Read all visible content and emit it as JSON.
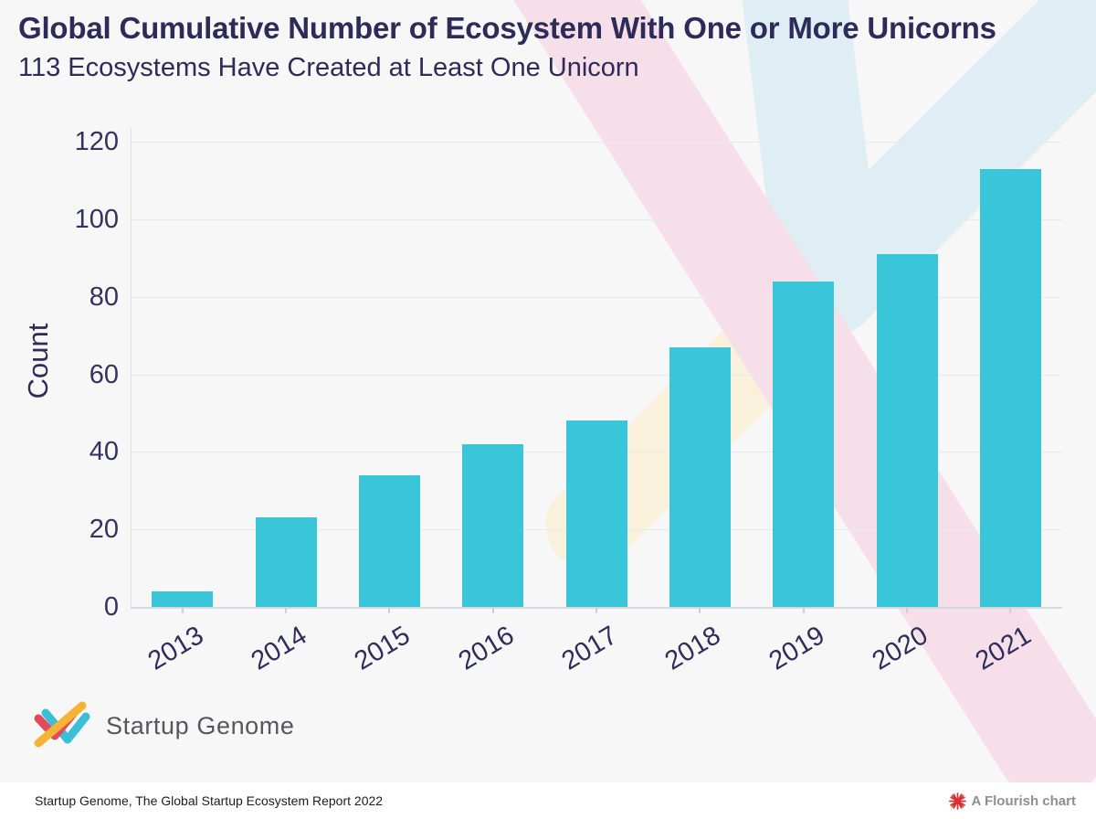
{
  "title": "Global Cumulative Number of Ecosystem With One or More Unicorns",
  "subtitle": "113 Ecosystems Have Created at Least One Unicorn",
  "chart_data": {
    "type": "bar",
    "title": "Global Cumulative Number of Ecosystem With One or More Unicorns",
    "subtitle": "113 Ecosystems Have Created at Least One Unicorn",
    "categories": [
      "2013",
      "2014",
      "2015",
      "2016",
      "2017",
      "2018",
      "2019",
      "2020",
      "2021"
    ],
    "values": [
      4,
      23,
      34,
      42,
      48,
      67,
      84,
      91,
      113
    ],
    "xlabel": "",
    "ylabel": "Count",
    "ylim": [
      0,
      120
    ],
    "yticks": [
      0,
      20,
      40,
      60,
      80,
      100,
      120
    ],
    "grid": true,
    "legend": "none",
    "bar_color": "#39c6d9"
  },
  "logo": {
    "text": "Startup Genome"
  },
  "footer": {
    "source": "Startup Genome, The Global Startup Ecosystem Report 2022",
    "attribution": "A Flourish chart"
  },
  "colors": {
    "bar": "#39c6d9",
    "title_text": "#2d2b58",
    "axis_text": "#34325f",
    "watermark_pink": "#f7dfe9",
    "watermark_blue": "#dfedf4",
    "watermark_yellow": "#faf1dc",
    "logo_red": "#e04c5e",
    "logo_teal": "#3bbfd4",
    "logo_yellow": "#f6b437",
    "flourish_red": "#d93030",
    "background": "#f7f7f8"
  }
}
